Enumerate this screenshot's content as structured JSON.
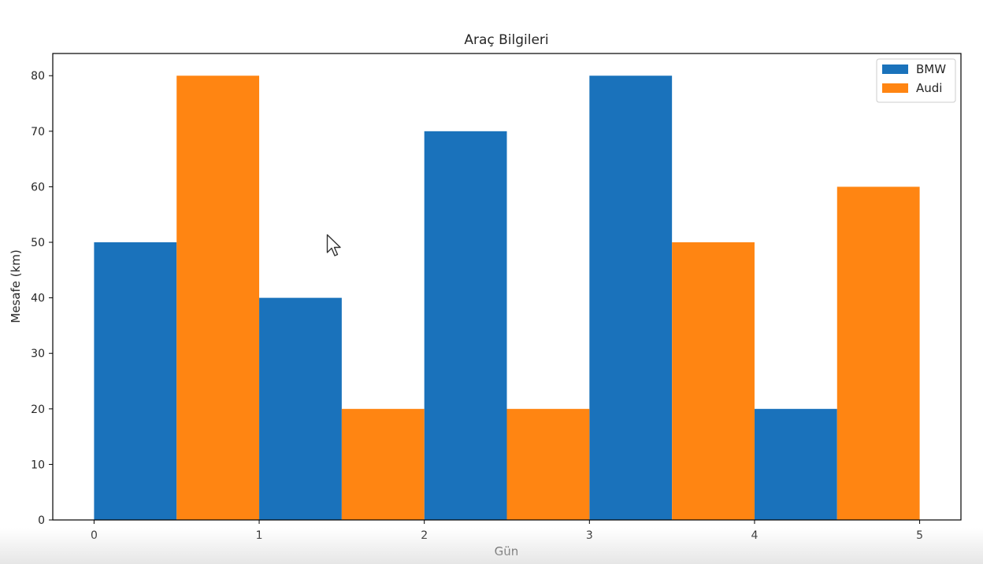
{
  "chart_data": {
    "type": "bar",
    "title": "Araç Bilgileri",
    "xlabel": "Gün",
    "ylabel": "Mesafe (km)",
    "x_ticks": [
      "0",
      "1",
      "2",
      "3",
      "4",
      "5"
    ],
    "y_ticks": [
      "0",
      "10",
      "20",
      "30",
      "40",
      "50",
      "60",
      "70",
      "80"
    ],
    "xlim": [
      -0.25,
      5.25
    ],
    "ylim": [
      0,
      84
    ],
    "bar_width": 0.5,
    "series": [
      {
        "name": "BMW",
        "color": "#1a72bb",
        "x": [
          0.25,
          1.25,
          2.25,
          3.25,
          4.25
        ],
        "values": [
          50,
          40,
          70,
          80,
          20
        ]
      },
      {
        "name": "Audi",
        "color": "#ff8512",
        "x": [
          0.75,
          1.75,
          2.75,
          3.75,
          4.75
        ],
        "values": [
          80,
          20,
          20,
          50,
          60
        ]
      }
    ],
    "legend_position": "upper right",
    "grid": false
  }
}
